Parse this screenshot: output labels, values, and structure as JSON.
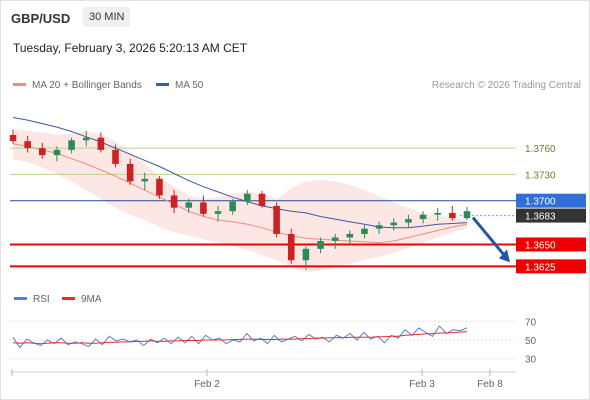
{
  "header": {
    "symbol": "GBP/USD",
    "timeframe": "30 MIN",
    "datetime": "Tuesday, February 3, 2026 5:20:13 AM CET"
  },
  "legend": {
    "ma20_label": "MA 20 + Bollinger Bands",
    "ma50_label": "MA 50",
    "credit": "Research © 2026 Trading Central",
    "rsi_label": "RSI",
    "rsi_ma_label": "9MA"
  },
  "colors": {
    "ma20": "#f28b82",
    "ma50": "#3c5aa6",
    "band_fill": "#fde3e0",
    "up": "#2e8b57",
    "down": "#cc2222",
    "resistance": "#b5d98a",
    "support": "#ee0000",
    "pivot": "#1f4e9a",
    "current_price": "#333333",
    "rsi": "#5b7fd6",
    "rsi_ma": "#e03030",
    "arrow": "#2355a8"
  },
  "chart_data": [
    {
      "type": "candlestick",
      "title": "GBP/USD 30 MIN",
      "ylim": [
        1.3598,
        1.3815
      ],
      "x_ticks": [
        "Feb 2",
        "Feb 3",
        "Feb 8"
      ],
      "levels": [
        {
          "label": "1.3760",
          "value": 1.376,
          "kind": "resistance"
        },
        {
          "label": "1.3730",
          "value": 1.373,
          "kind": "resistance"
        },
        {
          "label": "1.3700",
          "value": 1.37,
          "kind": "pivot"
        },
        {
          "label": "1.3683",
          "value": 1.3683,
          "kind": "current_price"
        },
        {
          "label": "1.3650",
          "value": 1.365,
          "kind": "support"
        },
        {
          "label": "1.3625",
          "value": 1.3625,
          "kind": "support"
        }
      ],
      "series": [
        {
          "name": "MA 20 + Bollinger Bands",
          "role": "ma20",
          "values": [
            1.3765,
            1.3762,
            1.3758,
            1.3754,
            1.3748,
            1.3742,
            1.3735,
            1.3728,
            1.372,
            1.3712,
            1.3704,
            1.3696,
            1.3688,
            1.3682,
            1.3678,
            1.3676,
            1.3673,
            1.3669,
            1.3664,
            1.366,
            1.3657,
            1.3656,
            1.3655,
            1.3654,
            1.3653,
            1.3652,
            1.3654,
            1.3658,
            1.3662,
            1.3666,
            1.367,
            1.3673
          ]
        },
        {
          "name": "MA 50",
          "role": "ma50",
          "values": [
            1.3795,
            1.3792,
            1.3788,
            1.3784,
            1.3779,
            1.3773,
            1.3767,
            1.376,
            1.3753,
            1.3746,
            1.3739,
            1.3731,
            1.3723,
            1.3716,
            1.371,
            1.3704,
            1.3699,
            1.3694,
            1.3691,
            1.3688,
            1.3686,
            1.3682,
            1.3679,
            1.3676,
            1.3673,
            1.367,
            1.3669,
            1.3669,
            1.3671,
            1.3673,
            1.3674,
            1.3675
          ]
        },
        {
          "name": "Bollinger upper",
          "role": "band_upper",
          "values": [
            1.3782,
            1.378,
            1.3778,
            1.3775,
            1.3777,
            1.3779,
            1.3776,
            1.3768,
            1.3755,
            1.3742,
            1.3728,
            1.3716,
            1.3706,
            1.3702,
            1.3704,
            1.3708,
            1.371,
            1.3708,
            1.3702,
            1.3714,
            1.3722,
            1.3724,
            1.3722,
            1.3718,
            1.3712,
            1.3705,
            1.3698,
            1.3692,
            1.3686,
            1.3683,
            1.368,
            1.3678
          ]
        },
        {
          "name": "Bollinger lower",
          "role": "band_lower",
          "values": [
            1.3748,
            1.3744,
            1.3738,
            1.373,
            1.3722,
            1.3712,
            1.3702,
            1.3692,
            1.3684,
            1.3678,
            1.367,
            1.3664,
            1.366,
            1.3656,
            1.3652,
            1.3648,
            1.3644,
            1.3638,
            1.3632,
            1.3624,
            1.3618,
            1.362,
            1.3624,
            1.3628,
            1.3632,
            1.3636,
            1.364,
            1.3646,
            1.3652,
            1.3658,
            1.3664,
            1.3668
          ]
        }
      ],
      "candles": [
        [
          1.3775,
          1.3781,
          1.3765,
          1.3768
        ],
        [
          1.3768,
          1.3774,
          1.3755,
          1.376
        ],
        [
          1.376,
          1.3766,
          1.3748,
          1.3752
        ],
        [
          1.3752,
          1.3762,
          1.3745,
          1.3758
        ],
        [
          1.3758,
          1.3772,
          1.3754,
          1.3769
        ],
        [
          1.3769,
          1.378,
          1.3762,
          1.3772
        ],
        [
          1.3772,
          1.3778,
          1.3755,
          1.3758
        ],
        [
          1.3758,
          1.3764,
          1.3738,
          1.3742
        ],
        [
          1.3742,
          1.3748,
          1.3718,
          1.3722
        ],
        [
          1.3722,
          1.3732,
          1.3712,
          1.3725
        ],
        [
          1.3725,
          1.3728,
          1.3702,
          1.3706
        ],
        [
          1.3706,
          1.3712,
          1.3686,
          1.3692
        ],
        [
          1.3692,
          1.3702,
          1.3686,
          1.3698
        ],
        [
          1.3698,
          1.3706,
          1.3682,
          1.3685
        ],
        [
          1.3685,
          1.3694,
          1.3676,
          1.3688
        ],
        [
          1.3688,
          1.3702,
          1.3684,
          1.3699
        ],
        [
          1.3699,
          1.3712,
          1.3695,
          1.3708
        ],
        [
          1.3708,
          1.3711,
          1.3692,
          1.3694
        ],
        [
          1.3694,
          1.3698,
          1.3658,
          1.3662
        ],
        [
          1.3662,
          1.3668,
          1.3628,
          1.3632
        ],
        [
          1.3632,
          1.3648,
          1.3621,
          1.3645
        ],
        [
          1.3645,
          1.3658,
          1.364,
          1.3654
        ],
        [
          1.3654,
          1.3662,
          1.3645,
          1.3658
        ],
        [
          1.3658,
          1.3666,
          1.365,
          1.3662
        ],
        [
          1.3662,
          1.3672,
          1.3657,
          1.3668
        ],
        [
          1.3668,
          1.3676,
          1.3662,
          1.3672
        ],
        [
          1.3672,
          1.368,
          1.3666,
          1.3675
        ],
        [
          1.3675,
          1.3684,
          1.3669,
          1.3679
        ],
        [
          1.3679,
          1.3688,
          1.3674,
          1.3684
        ],
        [
          1.3684,
          1.3692,
          1.3677,
          1.3686
        ],
        [
          1.3686,
          1.3694,
          1.3677,
          1.368
        ],
        [
          1.368,
          1.3693,
          1.3678,
          1.3688
        ]
      ],
      "forecast": {
        "from": 1.3683,
        "to": 1.3625
      }
    },
    {
      "type": "line",
      "title": "RSI",
      "ylim": [
        20,
        80
      ],
      "y_ticks": [
        70,
        50,
        30
      ],
      "series": [
        {
          "name": "RSI",
          "role": "rsi",
          "values": [
            53,
            42,
            51,
            47,
            44,
            50,
            46,
            52,
            45,
            48,
            46,
            43,
            51,
            45,
            54,
            49,
            51,
            48,
            50,
            44,
            51,
            47,
            52,
            46,
            53,
            47,
            54,
            46,
            55,
            50,
            52,
            46,
            50,
            48,
            57,
            49,
            52,
            46,
            55,
            48,
            51,
            54,
            49,
            56,
            51,
            53,
            48,
            55,
            52,
            57,
            50,
            58,
            51,
            54,
            47,
            55,
            52,
            61,
            55,
            63,
            58,
            54,
            65,
            57,
            61,
            60,
            63
          ]
        },
        {
          "name": "9MA",
          "role": "rsi_ma",
          "values": [
            47,
            46.5,
            47,
            46.5,
            46,
            46.5,
            47,
            47,
            46.5,
            46.5,
            47,
            46.5,
            46.5,
            47,
            47.5,
            47.5,
            48,
            48,
            48.5,
            48.5,
            49,
            48.5,
            48.5,
            49,
            49,
            49.5,
            49.5,
            49.5,
            50,
            50,
            50,
            50,
            50.5,
            50.5,
            51,
            51,
            50.5,
            50.5,
            50.5,
            51,
            51,
            51,
            51.5,
            51.5,
            52,
            52,
            52.5,
            52.5,
            52.5,
            53,
            53,
            53,
            53,
            53.5,
            53.5,
            54,
            54,
            55,
            55.5,
            56,
            56.5,
            57,
            57.5,
            57.5,
            58,
            58.5,
            59
          ]
        }
      ]
    }
  ]
}
